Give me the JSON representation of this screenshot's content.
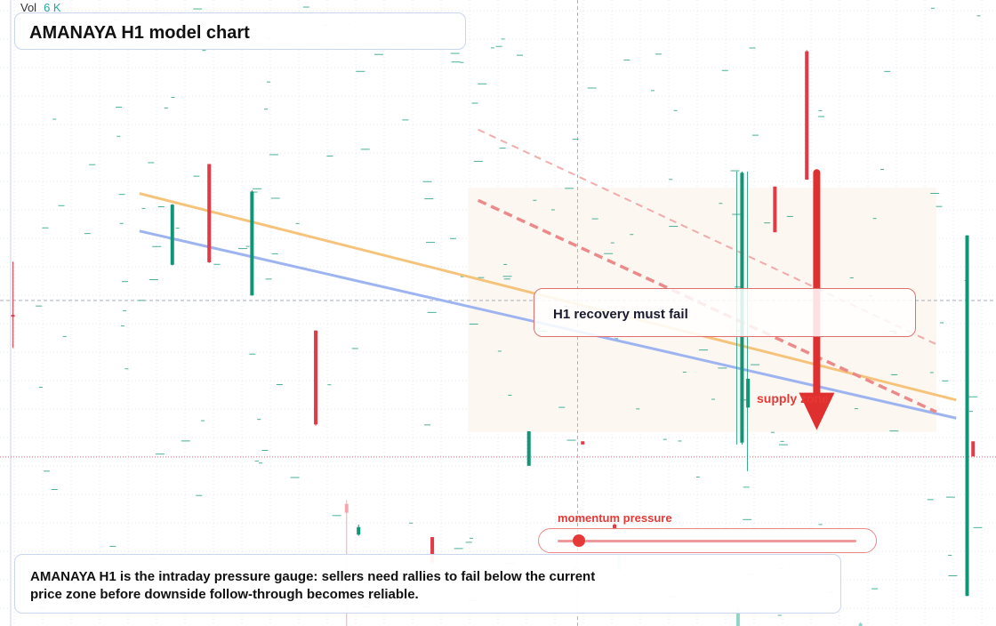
{
  "header": {
    "vol_label": "Vol",
    "vol_value": "6 K"
  },
  "title": "AMANAYA H1 model chart",
  "callout": "H1 recovery must fail",
  "supply_label": "supply zone",
  "momentum": {
    "label": "momentum pressure",
    "level": 0.07
  },
  "note": "AMANAYA H1 is the intraday pressure gauge: sellers need rallies to fail below the current price zone before downside follow-through becomes reliable.",
  "colors": {
    "bull": "#0e9677",
    "bear": "#e53945",
    "bear_light": "#f4a0a6",
    "bull_light": "#88d0c2",
    "resistance_line": "#f6c37a",
    "support_line": "#9db4f0",
    "dashed_channel": "#ec8a8a",
    "arrow": "#e02f2f",
    "zone_fill": "#fdf6f0"
  },
  "chart_data": {
    "type": "candlestick",
    "title": "AMANAYA H1 model chart",
    "price_axis": "hidden",
    "ylim": [
      0,
      100
    ],
    "xlim": [
      0,
      100
    ],
    "grid": true,
    "candles": [
      {
        "x": 1.3,
        "open": 49.5,
        "close": 49.7,
        "high": 58.2,
        "low": 44.4,
        "dir": "down"
      },
      {
        "x": 17.3,
        "open": 67.3,
        "close": 57.7,
        "high": 67.4,
        "low": 57.6,
        "dir": "up"
      },
      {
        "x": 21.0,
        "open": 73.8,
        "close": 58.1,
        "high": 73.8,
        "low": 58.0,
        "dir": "down"
      },
      {
        "x": 25.3,
        "open": 69.4,
        "close": 52.8,
        "high": 69.6,
        "low": 52.8,
        "dir": "up"
      },
      {
        "x": 31.7,
        "open": 47.2,
        "close": 32.2,
        "high": 47.2,
        "low": 32.0,
        "dir": "down"
      },
      {
        "x": 34.8,
        "open": 19.5,
        "close": 18.1,
        "high": 20.1,
        "low": 0.0,
        "dir": "down-faded"
      },
      {
        "x": 36.0,
        "open": 15.8,
        "close": 14.6,
        "high": 16.2,
        "low": 14.4,
        "dir": "up"
      },
      {
        "x": 43.4,
        "open": 14.2,
        "close": 10.2,
        "high": 14.2,
        "low": 9.9,
        "dir": "down"
      },
      {
        "x": 53.1,
        "open": 25.6,
        "close": 31.1,
        "high": 31.1,
        "low": 25.6,
        "dir": "up"
      },
      {
        "x": 58.5,
        "open": 29.5,
        "close": 29.0,
        "high": 29.5,
        "low": 29.0,
        "dir": "down"
      },
      {
        "x": 61.7,
        "open": 16.2,
        "close": 15.6,
        "high": 16.4,
        "low": 15.4,
        "dir": "down"
      },
      {
        "x": 62.2,
        "open": 11.3,
        "close": 8.9,
        "high": 11.3,
        "low": 8.9,
        "dir": "up-faded"
      },
      {
        "x": 74.5,
        "open": 72.4,
        "close": 29.3,
        "high": 72.6,
        "low": 29.0,
        "dir": "up"
      },
      {
        "x": 75.1,
        "open": 39.5,
        "close": 34.9,
        "high": 39.5,
        "low": 34.9,
        "dir": "up"
      },
      {
        "x": 77.8,
        "open": 70.2,
        "close": 62.9,
        "high": 70.2,
        "low": 62.9,
        "dir": "down"
      },
      {
        "x": 81.0,
        "open": 91.8,
        "close": 71.3,
        "high": 92.0,
        "low": 71.3,
        "dir": "down"
      },
      {
        "x": 74.1,
        "open": 2.7,
        "close": 0.0,
        "high": 3.5,
        "low": 0.0,
        "dir": "up-faded"
      },
      {
        "x": 86.4,
        "open": 0.4,
        "close": 0.0,
        "high": 0.6,
        "low": 0.0,
        "dir": "up-faded"
      },
      {
        "x": 97.1,
        "open": 62.4,
        "close": 4.8,
        "high": 62.4,
        "low": 4.8,
        "dir": "up"
      },
      {
        "x": 97.7,
        "open": 29.5,
        "close": 27.1,
        "high": 29.5,
        "low": 27.1,
        "dir": "down"
      }
    ],
    "trendlines": [
      {
        "name": "resistance",
        "from": [
          14.0,
          69.1
        ],
        "to": [
          96.0,
          36.1
        ],
        "style": "solid"
      },
      {
        "name": "support",
        "from": [
          14.0,
          63.1
        ],
        "to": [
          96.0,
          33.2
        ],
        "style": "solid"
      },
      {
        "name": "upper-channel",
        "from": [
          48.0,
          79.3
        ],
        "to": [
          94.0,
          45.0
        ],
        "style": "dashed"
      },
      {
        "name": "lower-channel",
        "from": [
          48.0,
          68.0
        ],
        "to": [
          94.0,
          34.2
        ],
        "style": "dashed-bold"
      }
    ],
    "zones": [
      {
        "name": "supply zone",
        "x": [
          47.0,
          94.0
        ],
        "y": [
          31.0,
          70.0
        ]
      }
    ],
    "arrow": {
      "from": [
        82.0,
        72.4
      ],
      "to": [
        82.0,
        31.3
      ],
      "direction": "down"
    },
    "crosshair": {
      "x": 58.0,
      "y": 52.0
    },
    "horizontal_levels": [
      {
        "y": 27.0,
        "style": "dotted"
      }
    ]
  }
}
